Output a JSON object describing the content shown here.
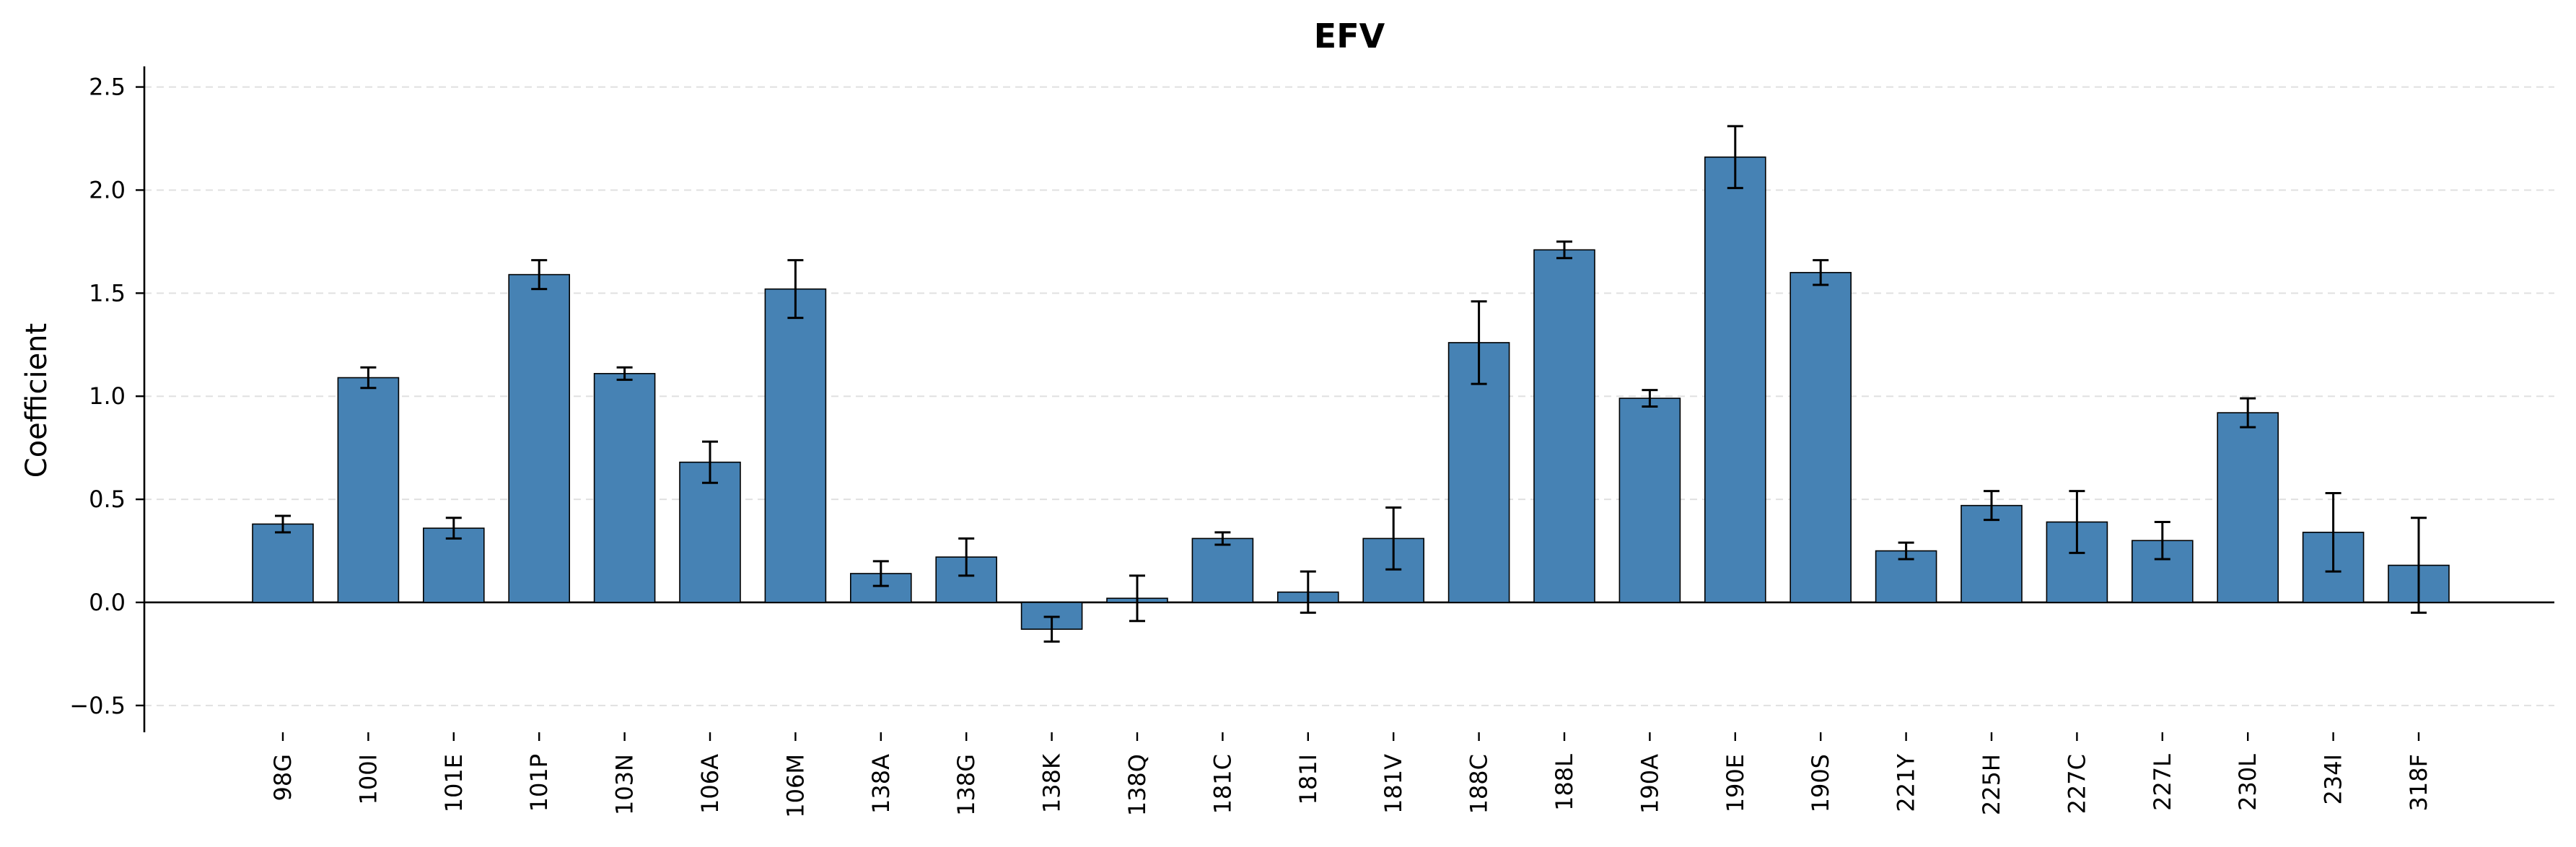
{
  "chart_data": {
    "type": "bar",
    "title": "EFV",
    "xlabel": "",
    "ylabel": "Coefficient",
    "ylim": [
      -0.63,
      2.6
    ],
    "yticks": [
      -0.5,
      0.0,
      0.5,
      1.0,
      1.5,
      2.0,
      2.5
    ],
    "ytick_labels": [
      "−0.5",
      "0.0",
      "0.5",
      "1.0",
      "1.5",
      "2.0",
      "2.5"
    ],
    "grid": "y-dashed",
    "categories": [
      "98G",
      "100I",
      "101E",
      "101P",
      "103N",
      "106A",
      "106M",
      "138A",
      "138G",
      "138K",
      "138Q",
      "181C",
      "181I",
      "181V",
      "188C",
      "188L",
      "190A",
      "190E",
      "190S",
      "221Y",
      "225H",
      "227C",
      "227L",
      "230L",
      "234I",
      "318F"
    ],
    "values": [
      0.38,
      1.09,
      0.36,
      1.59,
      1.11,
      0.68,
      1.52,
      0.14,
      0.22,
      -0.13,
      0.02,
      0.31,
      0.05,
      0.31,
      1.26,
      1.71,
      0.99,
      2.16,
      1.6,
      0.25,
      0.47,
      0.39,
      0.3,
      0.92,
      0.34,
      0.18
    ],
    "errors": [
      0.04,
      0.05,
      0.05,
      0.07,
      0.03,
      0.1,
      0.14,
      0.06,
      0.09,
      0.06,
      0.11,
      0.03,
      0.1,
      0.15,
      0.2,
      0.04,
      0.04,
      0.15,
      0.06,
      0.04,
      0.07,
      0.15,
      0.09,
      0.07,
      0.19,
      0.23
    ],
    "colors": {
      "bar": "#4682b4",
      "bar_edge": "#000000",
      "grid": "#e0e0e0",
      "axis": "#000000"
    }
  }
}
